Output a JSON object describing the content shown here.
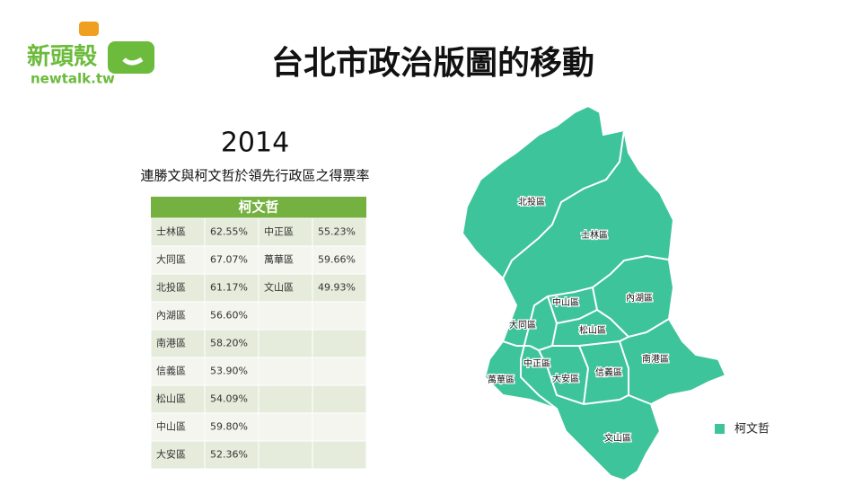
{
  "logo": {
    "brand": "新頭殼",
    "url": "newtalk.tw"
  },
  "title": "台北市政治版圖的移動",
  "year": "2014",
  "subtitle": "連勝文與柯文哲於領先行政區之得票率",
  "table": {
    "header": "柯文哲",
    "rows": [
      [
        "士林區",
        "62.55%",
        "中正區",
        "55.23%"
      ],
      [
        "大同區",
        "67.07%",
        "萬華區",
        "59.66%"
      ],
      [
        "北投區",
        "61.17%",
        "文山區",
        "49.93%"
      ],
      [
        "內湖區",
        "56.60%"
      ],
      [
        "南港區",
        "58.20%"
      ],
      [
        "信義區",
        "53.90%"
      ],
      [
        "松山區",
        "54.09%"
      ],
      [
        "中山區",
        "59.80%"
      ],
      [
        "大安區",
        "52.36%"
      ]
    ]
  },
  "map": {
    "districts": [
      "北投區",
      "士林區",
      "中山區",
      "內湖區",
      "大同區",
      "松山區",
      "南港區",
      "中正區",
      "萬華區",
      "大安區",
      "信義區",
      "文山區"
    ],
    "legend": {
      "label": "柯文哲",
      "color": "#3ec49b"
    }
  }
}
